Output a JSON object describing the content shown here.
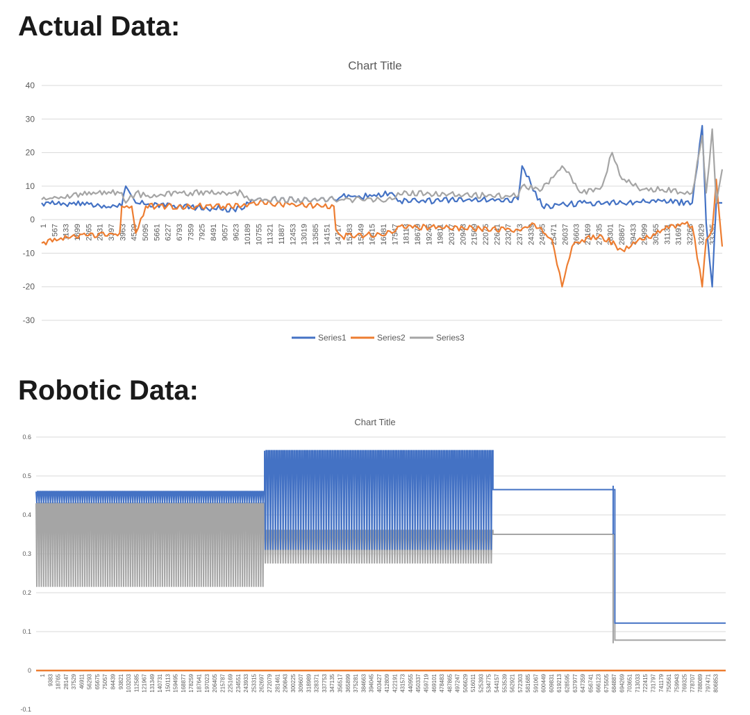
{
  "headings": {
    "actual": "Actual Data:",
    "robotic": "Robotic Data:"
  },
  "chart_data": [
    {
      "type": "line",
      "title": "Chart Title",
      "xlabel": "",
      "ylabel": "",
      "ylim": [
        -30,
        40
      ],
      "yticks": [
        -30,
        -20,
        -10,
        0,
        10,
        20,
        30,
        40
      ],
      "grid": true,
      "legend": "bottom",
      "colors": {
        "Series1": "#4472c4",
        "Series2": "#ed7d31",
        "Series3": "#a5a5a5"
      },
      "x_tick_labels": [
        "1",
        "567",
        "1133",
        "1699",
        "2265",
        "2831",
        "3397",
        "3963",
        "4529",
        "5095",
        "5661",
        "6227",
        "6793",
        "7359",
        "7925",
        "8491",
        "9057",
        "9623",
        "10189",
        "10755",
        "11321",
        "11887",
        "12453",
        "13019",
        "13585",
        "14151",
        "14717",
        "15283",
        "15849",
        "16415",
        "16981",
        "17547",
        "18113",
        "18679",
        "19245",
        "19811",
        "20377",
        "20943",
        "21509",
        "22075",
        "22641",
        "23207",
        "23773",
        "24339",
        "24905",
        "25471",
        "26037",
        "26603",
        "27169",
        "27735",
        "28301",
        "28867",
        "29433",
        "29999",
        "30565",
        "31131",
        "31697",
        "32263",
        "32829",
        "33395"
      ],
      "x_max": 34000,
      "series": [
        {
          "name": "Series1",
          "x": [
            0,
            1500,
            2800,
            3000,
            4000,
            4200,
            4700,
            6500,
            10000,
            10500,
            14600,
            15000,
            16500,
            17500,
            17800,
            23800,
            24000,
            25000,
            27000,
            29000,
            31000,
            32500,
            33000,
            33200,
            33500,
            33700,
            34000
          ],
          "y": [
            5,
            4.7,
            4.7,
            3.5,
            4,
            10,
            5,
            4,
            3,
            6,
            6,
            7,
            7,
            8,
            5.5,
            6,
            16,
            4,
            5,
            5,
            5.5,
            5,
            28,
            -1,
            -20,
            5,
            5
          ]
        },
        {
          "name": "Series2",
          "x": [
            0,
            1500,
            3900,
            4000,
            4500,
            4700,
            5200,
            10000,
            10500,
            14600,
            14700,
            15000,
            17500,
            17800,
            23800,
            24500,
            25500,
            26000,
            26500,
            27000,
            28000,
            29000,
            30000,
            31000,
            32000,
            32500,
            33000,
            33200,
            33500,
            33700,
            34000
          ],
          "y": [
            -7,
            -5,
            -4,
            4,
            4,
            -4,
            4,
            4,
            5,
            4,
            -3,
            -5,
            -4,
            -2,
            -3,
            -1,
            -6,
            -20,
            -8,
            -6,
            -5,
            -9,
            -6,
            -3,
            -1,
            -2,
            -20,
            -6,
            -3,
            12,
            -8
          ]
        },
        {
          "name": "Series3",
          "x": [
            0,
            1500,
            2800,
            4000,
            4200,
            4700,
            5200,
            7000,
            10000,
            10500,
            14600,
            15000,
            17500,
            17800,
            23800,
            24000,
            25000,
            26000,
            27000,
            28000,
            28500,
            29000,
            30000,
            31000,
            32000,
            32500,
            33000,
            33200,
            33500,
            33700,
            34000
          ],
          "y": [
            6,
            7,
            8,
            8,
            5,
            8,
            7,
            8,
            8,
            6,
            6,
            6,
            6,
            8,
            7,
            10,
            9,
            16,
            8,
            10,
            20,
            12,
            9,
            9,
            8,
            8,
            25,
            8,
            27,
            5,
            15
          ]
        }
      ]
    },
    {
      "type": "line",
      "title": "Chart Title",
      "xlabel": "",
      "ylabel": "",
      "ylim": [
        -0.1,
        0.6
      ],
      "yticks": [
        -0.1,
        0,
        0.1,
        0.2,
        0.3,
        0.4,
        0.5,
        0.6
      ],
      "grid": true,
      "colors": {
        "series_a": "#4472c4",
        "series_b": "#ed7d31",
        "series_c": "#a5a5a5"
      },
      "x_tick_labels": [
        "1",
        "9383",
        "18765",
        "28147",
        "37529",
        "46911",
        "56293",
        "65675",
        "75057",
        "84439",
        "93821",
        "103203",
        "112585",
        "121967",
        "131349",
        "140731",
        "150113",
        "159495",
        "168877",
        "178259",
        "187641",
        "197023",
        "206405",
        "215787",
        "225169",
        "234551",
        "243933",
        "253315",
        "262697",
        "272079",
        "281461",
        "290843",
        "300225",
        "309607",
        "318989",
        "328371",
        "337753",
        "347135",
        "356517",
        "365899",
        "375281",
        "384663",
        "394045",
        "403427",
        "412809",
        "422191",
        "431573",
        "440955",
        "450337",
        "459719",
        "469101",
        "478483",
        "487865",
        "497247",
        "506629",
        "516011",
        "525393",
        "534775",
        "544157",
        "553539",
        "562921",
        "572303",
        "581685",
        "591067",
        "600449",
        "609831",
        "619213",
        "628595",
        "637977",
        "647359",
        "656741",
        "666123",
        "675505",
        "684887",
        "694269",
        "703651",
        "713033",
        "722415",
        "731797",
        "741179",
        "750561",
        "759943",
        "769325",
        "778707",
        "788089",
        "797471",
        "806853"
      ],
      "x_max": 815000,
      "series": [
        {
          "name": "",
          "segments": [
            {
              "x": [
                0,
                270000
              ],
              "y_hi": 0.46,
              "y_lo": 0.43,
              "cycles": 100
            },
            {
              "x": [
                270000,
                540000
              ],
              "y_hi": 0.565,
              "y_lo": 0.31,
              "cycles": 90
            },
            {
              "x": [
                540000,
                680000
              ],
              "y_hi": 0.465,
              "y_lo": 0.465,
              "cycles": 0
            },
            {
              "x": [
                684000,
                815000
              ],
              "y_hi": 0.122,
              "y_lo": 0.122,
              "cycles": 0
            }
          ]
        },
        {
          "name": "",
          "segments": [
            {
              "x": [
                0,
                815000
              ],
              "y_hi": 0,
              "y_lo": 0,
              "cycles": 0
            }
          ]
        },
        {
          "name": "",
          "segments": [
            {
              "x": [
                0,
                270000
              ],
              "y_hi": 0.43,
              "y_lo": 0.215,
              "cycles": 100
            },
            {
              "x": [
                270000,
                540000
              ],
              "y_hi": 0.36,
              "y_lo": 0.275,
              "cycles": 90
            },
            {
              "x": [
                540000,
                680000
              ],
              "y_hi": 0.35,
              "y_lo": 0.35,
              "cycles": 0
            },
            {
              "x": [
                684000,
                815000
              ],
              "y_hi": 0.078,
              "y_lo": 0.078,
              "cycles": 0
            }
          ]
        }
      ]
    }
  ]
}
